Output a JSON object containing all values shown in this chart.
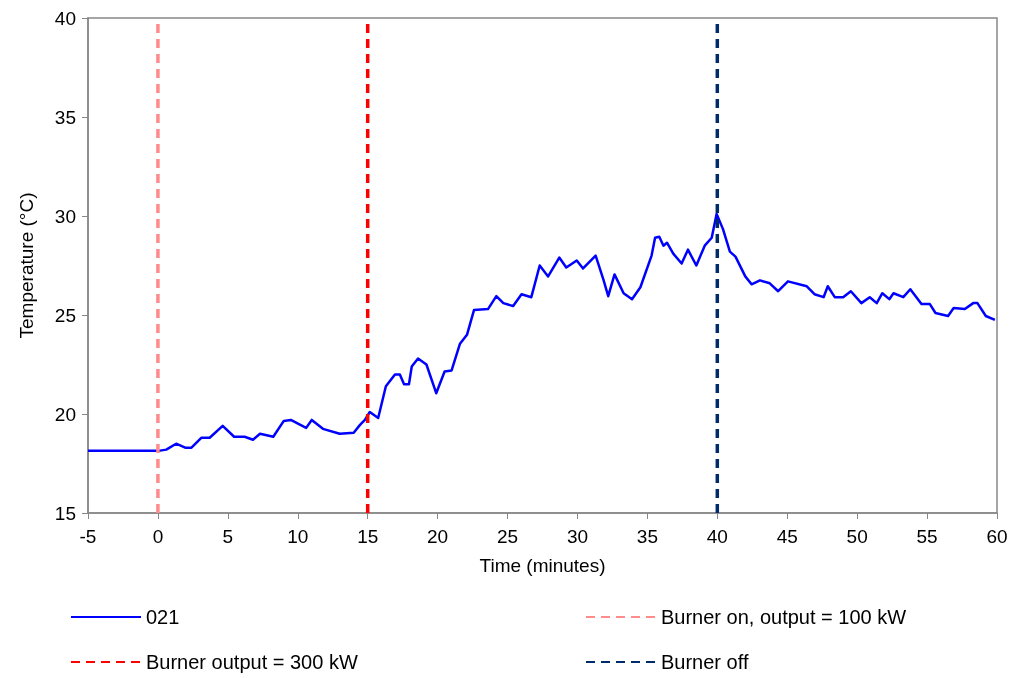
{
  "chart_data": {
    "type": "line",
    "xlabel": "Time (minutes)",
    "ylabel": "Temperature (°C)",
    "xlim": [
      -5,
      60
    ],
    "xticks": [
      -5,
      0,
      5,
      10,
      15,
      20,
      25,
      30,
      35,
      40,
      45,
      50,
      55,
      60
    ],
    "ylim": [
      15,
      40
    ],
    "yticks": [
      15,
      20,
      25,
      30,
      35,
      40
    ],
    "grid": false,
    "legend": "bottom",
    "marker": "none",
    "line_style": "solid",
    "series": [
      {
        "name": "021",
        "color": "#0000ff",
        "x": [
          -5,
          -2.95,
          0.15,
          0.6,
          1.3,
          1.95,
          2.4,
          3.1,
          3.7,
          4.63,
          5.45,
          6.2,
          6.8,
          7.3,
          8.25,
          9.0,
          9.5,
          10.6,
          11.0,
          11.8,
          13.0,
          14.0,
          14.45,
          14.8,
          15.15,
          15.75,
          16.3,
          16.95,
          17.3,
          17.6,
          17.95,
          18.15,
          18.6,
          19.2,
          19.9,
          20.5,
          21.0,
          21.6,
          22.1,
          22.6,
          23.6,
          24.2,
          24.7,
          25.4,
          26.0,
          26.7,
          27.3,
          27.9,
          28.7,
          29.2,
          29.95,
          30.4,
          31.3,
          31.85,
          32.2,
          32.65,
          33.3,
          33.9,
          34.5,
          35.3,
          35.55,
          35.85,
          36.15,
          36.4,
          36.85,
          37.45,
          37.9,
          38.5,
          39.1,
          39.6,
          39.95,
          40.4,
          40.9,
          41.3,
          42.0,
          42.45,
          43.05,
          43.75,
          44.35,
          45.05,
          46.4,
          46.95,
          47.6,
          47.9,
          48.4,
          49.0,
          49.55,
          50.3,
          50.9,
          51.4,
          51.8,
          52.3,
          52.6,
          53.3,
          53.8,
          54.6,
          55.2,
          55.6,
          56.5,
          56.9,
          57.7,
          58.3,
          58.6,
          59.2,
          59.85
        ],
        "values": [
          18.15,
          18.15,
          18.15,
          18.2,
          18.5,
          18.3,
          18.3,
          18.8,
          18.8,
          19.4,
          18.85,
          18.85,
          18.7,
          19.0,
          18.85,
          19.65,
          19.7,
          19.3,
          19.7,
          19.25,
          19.0,
          19.05,
          19.45,
          19.7,
          20.1,
          19.8,
          21.4,
          22.0,
          22.0,
          21.5,
          21.5,
          22.4,
          22.8,
          22.5,
          21.05,
          22.15,
          22.2,
          23.55,
          24.0,
          25.25,
          25.3,
          25.95,
          25.6,
          25.45,
          26.05,
          25.9,
          27.5,
          26.95,
          27.9,
          27.4,
          27.75,
          27.35,
          28.0,
          26.8,
          25.95,
          27.05,
          26.1,
          25.8,
          26.4,
          28.0,
          28.9,
          28.95,
          28.5,
          28.65,
          28.1,
          27.6,
          28.3,
          27.5,
          28.5,
          28.9,
          30.1,
          29.35,
          28.2,
          27.95,
          26.95,
          26.55,
          26.75,
          26.6,
          26.2,
          26.7,
          26.45,
          26.05,
          25.9,
          26.45,
          25.9,
          25.9,
          26.2,
          25.6,
          25.9,
          25.6,
          26.1,
          25.8,
          26.1,
          25.9,
          26.3,
          25.55,
          25.55,
          25.1,
          24.95,
          25.35,
          25.3,
          25.6,
          25.6,
          24.95,
          24.75
        ]
      },
      {
        "name": "Burner on, output = 100 kW",
        "color": "#ff8b8b",
        "line_style": "dashed",
        "x": [
          0,
          0
        ],
        "values": [
          15,
          40
        ]
      },
      {
        "name": "Burner output = 300 kW",
        "color": "#ff0000",
        "line_style": "dashed",
        "x": [
          15,
          15
        ],
        "values": [
          15,
          40
        ]
      },
      {
        "name": "Burner off",
        "color": "#002b6b",
        "line_style": "dashed",
        "x": [
          40,
          40
        ],
        "values": [
          15,
          40
        ]
      }
    ]
  }
}
